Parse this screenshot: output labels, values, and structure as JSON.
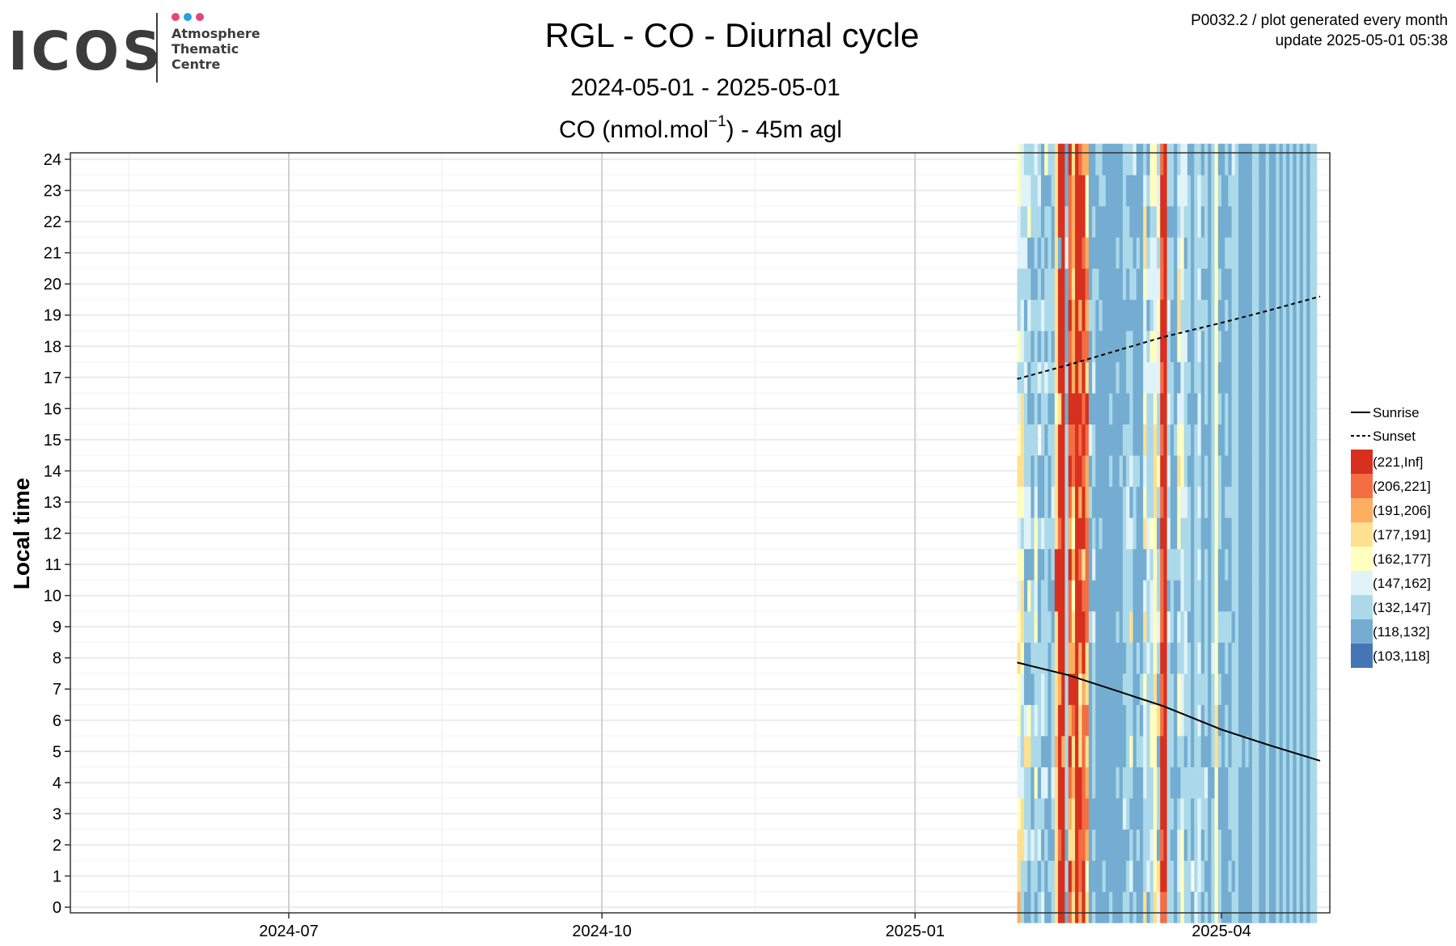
{
  "header": {
    "logo_text": "ICOS",
    "logo_sub": [
      "Atmosphere",
      "Thematic",
      "Centre"
    ],
    "logo_dot_colors": [
      "#e8447a",
      "#2b9ee0",
      "#e8447a"
    ],
    "plot_id": "P0032.2 / plot generated every month",
    "update": "update  2025-05-01 05:38"
  },
  "chart_data": {
    "type": "heatmap",
    "title": "RGL - CO - Diurnal cycle",
    "subtitle": "2024-05-01 - 2025-05-01",
    "panel_title_prefix": "CO (nmol.mol",
    "panel_title_exp": "−1",
    "panel_title_suffix": ") - 45m agl",
    "ylabel": "Local time",
    "xlabel": "",
    "x_range": [
      "2024-05-01",
      "2025-05-01"
    ],
    "x_ticks": [
      "2024-07",
      "2024-10",
      "2025-01",
      "2025-04"
    ],
    "y_range": [
      0,
      24
    ],
    "y_ticks": [
      "0",
      "1",
      "2",
      "3",
      "4",
      "5",
      "6",
      "7",
      "8",
      "9",
      "10",
      "11",
      "12",
      "13",
      "14",
      "15",
      "16",
      "17",
      "18",
      "19",
      "20",
      "21",
      "22",
      "23",
      "24"
    ],
    "data_start": "2025-01-31",
    "data_end": "2025-04-29",
    "grid": true,
    "legend_position": "right",
    "lines": [
      {
        "name": "Sunrise",
        "style": "solid",
        "points": [
          [
            "2025-01-31",
            7.85
          ],
          [
            "2025-02-15",
            7.45
          ],
          [
            "2025-03-01",
            6.95
          ],
          [
            "2025-03-15",
            6.45
          ],
          [
            "2025-04-01",
            5.7
          ],
          [
            "2025-04-15",
            5.2
          ],
          [
            "2025-04-30",
            4.7
          ]
        ]
      },
      {
        "name": "Sunset",
        "style": "dashed",
        "points": [
          [
            "2025-01-31",
            16.95
          ],
          [
            "2025-02-15",
            17.4
          ],
          [
            "2025-03-01",
            17.85
          ],
          [
            "2025-03-15",
            18.3
          ],
          [
            "2025-04-01",
            18.75
          ],
          [
            "2025-04-15",
            19.15
          ],
          [
            "2025-04-30",
            19.6
          ]
        ]
      }
    ],
    "bins": [
      {
        "label": "(221,Inf]",
        "color": "#d7301f"
      },
      {
        "label": "(206,221]",
        "color": "#f46d43"
      },
      {
        "label": "(191,206]",
        "color": "#fdae61"
      },
      {
        "label": "(177,191]",
        "color": "#fee090"
      },
      {
        "label": "(162,177]",
        "color": "#ffffbf"
      },
      {
        "label": "(147,162]",
        "color": "#e0f3f8"
      },
      {
        "label": "(132,147]",
        "color": "#abd9e9"
      },
      {
        "label": "(118,132]",
        "color": "#74add1"
      },
      {
        "label": "(103,118]",
        "color": "#4575b4"
      }
    ],
    "columns": [
      "2334554434545434564665544",
      "6633566543346433365565655",
      "7656635776775566656765656",
      "7766634776475566776567456",
      "6657766766676776767677666",
      "7666465664544566666676665",
      "6756766667776778757667656",
      "5676575566675776666576777",
      "7767576666666667657667674",
      "7677777776776776766666676",
      "6676566667766566767667766",
      "3333323333003333433333333",
      "0010000200001000300007000",
      "0000020000000000000000000",
      "7676666666666666767775677",
      "1032102021102101001011110",
      "3233231023424311022232223",
      "0000000000000000000000000",
      "2110033420010201020200001",
      "0011111200130010101001002",
      "3421231331111221031212442",
      "7777777776777675777677777",
      "6767666665756766756667677",
      "7777777777777777777767776",
      "7777777777776777777677766",
      "7677777777777777777777767",
      "7777777777777777777777777",
      "6777777777777767677777777",
      "7777777777777777777777777",
      "7777677776777777767776777",
      "7777777777777767777777777",
      "6775677676666676777766666",
      "6676666666665566766776676",
      "7567646663665756666766776",
      "6777777777776667777767775",
      "7767766767777767777776777",
      "7777767677777777777777777",
      "3666555463573453455543356",
      "7566666656655666656756767",
      "6656644665564666654655644",
      "3444444344444333454555644",
      "5376673765667646655456456",
      "1010001101110101010011001",
      "1000000000000000000000000",
      "6666666665765656566566766",
      "6676766676667777667766766",
      "7777777777767776777777777",
      "6556764465764434574335656",
      "4445665566556544555654555",
      "6676676655666566665667655",
      "6666666667666676767666667",
      "7877677777777777777777777",
      "5666666666666666766666666",
      "6555665656656565565656556",
      "7676677677777777777676767",
      "6766576666667667666676666",
      "7777777777777777777777777",
      "6666766656666666666666666",
      "4444433444444444444444444",
      "6667767676776667676767767",
      "7777777776777777777777777",
      "7777766766767676677676776",
      "7676677776777677777776767",
      "6766666667666666666666665",
      "6666666666666666666666666",
      "7777767777777777777777777",
      "7777777777777777777777777",
      "7777767777777777777777777",
      "7777777777777777777777777",
      "6666666666666666666666666",
      "6666666666666666666666666",
      "7777777777777777777777777",
      "7777777777777777777777777",
      "6666666666666666666666666",
      "7777777777777777777777777",
      "7777777777777777777777777",
      "6666666666666666666666666",
      "7777777777777777777777777",
      "6666666666666666666666666",
      "7777777777777777777777777",
      "6666666666666666666666666",
      "7777777777777777777777777",
      "6666666666666666666666666",
      "7777777777777777777777777",
      "6666666666666666666666666",
      "7777777777777777777777777",
      "6666666666666666666666666",
      "6666666666666666666666666"
    ]
  }
}
